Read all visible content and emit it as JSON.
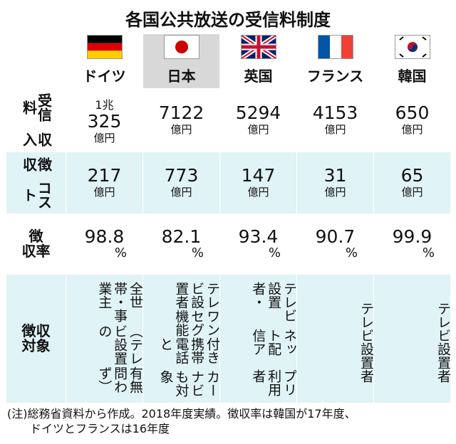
{
  "title": "各国公共放送の受信料制度",
  "table": {
    "columns": [
      "ドイツ",
      "日本",
      "英国",
      "フランス",
      "韓国"
    ],
    "rows": [
      {
        "header": [
          "受信料",
          "収入"
        ],
        "cells": [
          {
            "lines": [
              "1兆",
              "325"
            ],
            "unit": "億円"
          },
          {
            "lines": [
              "7122"
            ],
            "unit": "億円"
          },
          {
            "lines": [
              "5294"
            ],
            "unit": "億円"
          },
          {
            "lines": [
              "4153"
            ],
            "unit": "億円"
          },
          {
            "lines": [
              "650"
            ],
            "unit": "億円"
          }
        ]
      },
      {
        "header": [
          "徴収",
          "コスト"
        ],
        "cells": [
          {
            "lines": [
              "217"
            ],
            "unit": "億円"
          },
          {
            "lines": [
              "773"
            ],
            "unit": "億円"
          },
          {
            "lines": [
              "147"
            ],
            "unit": "億円"
          },
          {
            "lines": [
              "31"
            ],
            "unit": "億円"
          },
          {
            "lines": [
              "65"
            ],
            "unit": "億円"
          }
        ]
      },
      {
        "header": [
          "徴",
          "収率"
        ],
        "cells": [
          {
            "lines": [
              "98.8"
            ],
            "unit": "%"
          },
          {
            "lines": [
              "82.1"
            ],
            "unit": "%"
          },
          {
            "lines": [
              "93.4"
            ],
            "unit": "%"
          },
          {
            "lines": [
              "90.7"
            ],
            "unit": "%"
          },
          {
            "lines": [
              "99.9"
            ],
            "unit": "%"
          }
        ]
      },
      {
        "header": [
          "徴収",
          "対象"
        ],
        "cells": [
          {
            "lines": [
              "全世帯・事業主",
              "（テレビ設置の",
              "有無問わず）"
            ]
          },
          {
            "lines": [
              "テレビ設置者",
              "ワンセグ機能",
              "付き携帯電話と",
              "カーナビも対象"
            ]
          },
          {
            "lines": [
              "テレビ設置者・",
              "ネット配信ア",
              "プリ利用者"
            ]
          },
          {
            "lines": [
              "テレビ設置者"
            ]
          },
          {
            "lines": [
              "テレビ設置者"
            ]
          }
        ]
      }
    ]
  },
  "note": [
    "(注)総務省資料から作成。2018年度実績。徴収率は韓国が17年度、",
    "ドイツとフランスは16年度"
  ]
}
